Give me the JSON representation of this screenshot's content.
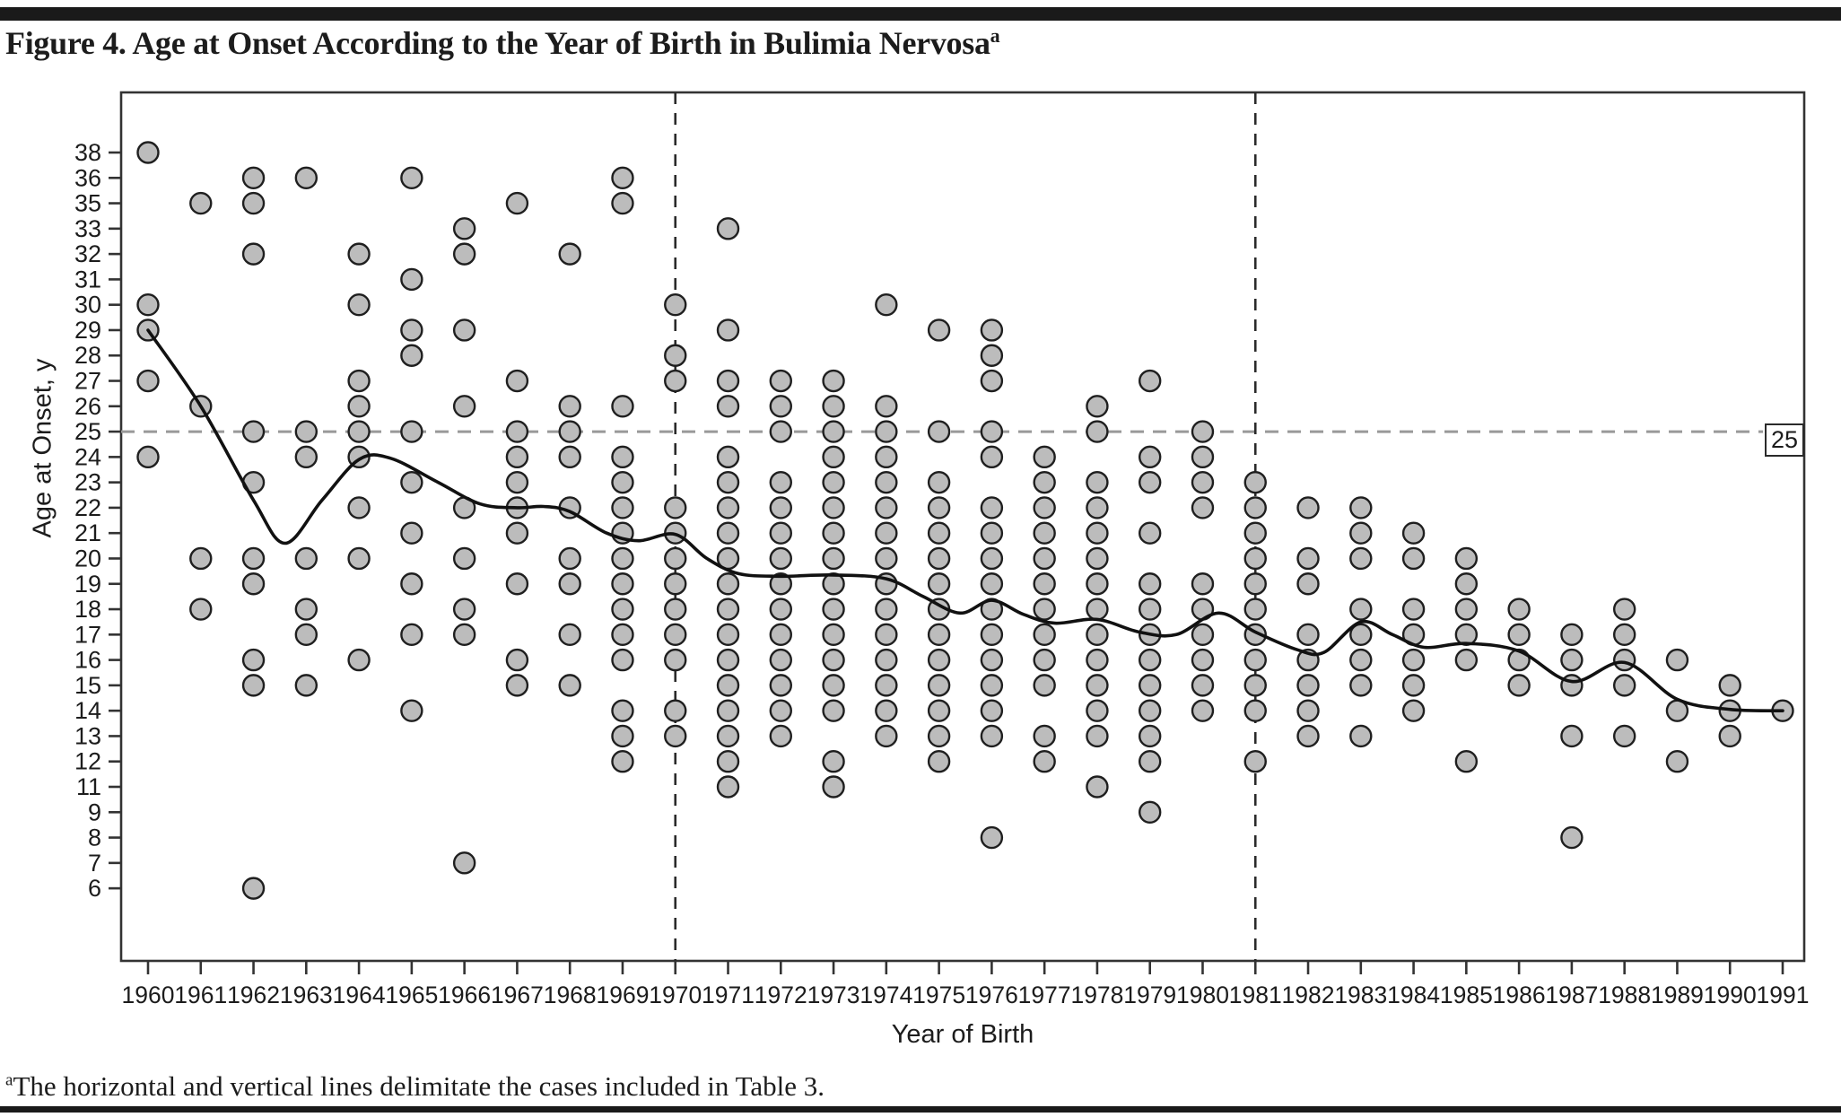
{
  "header": {
    "title": "Figure 4. Age at Onset According to the Year of Birth in Bulimia Nervosa",
    "title_superscript": "a"
  },
  "footnote": {
    "marker": "a",
    "text": "The horizontal and vertical lines delimitate the cases included in Table 3."
  },
  "colors": {
    "dot_fill": "#bcbcbc",
    "dot_stroke": "#1f1f1f",
    "trend_line": "#111111",
    "dashed_horizontal": "#999999",
    "dashed_vertical": "#2a2a2a",
    "axis": "#333333",
    "text": "#1c1c1c"
  },
  "chart_data": {
    "type": "scatter",
    "title": "Age at Onset According to the Year of Birth in Bulimia Nervosa",
    "xlabel": "Year of Birth",
    "ylabel": "Age at Onset, y",
    "x_ticks": [
      1960,
      1961,
      1962,
      1963,
      1964,
      1965,
      1966,
      1967,
      1968,
      1969,
      1970,
      1971,
      1972,
      1973,
      1974,
      1975,
      1976,
      1977,
      1978,
      1979,
      1980,
      1981,
      1982,
      1983,
      1984,
      1985,
      1986,
      1987,
      1988,
      1989,
      1990,
      1991
    ],
    "y_ticks": [
      38,
      36,
      35,
      33,
      32,
      31,
      30,
      29,
      28,
      27,
      26,
      25,
      24,
      23,
      22,
      21,
      20,
      19,
      18,
      17,
      16,
      15,
      14,
      13,
      12,
      11,
      9,
      8,
      7,
      6
    ],
    "grid": false,
    "reference_lines": {
      "horizontal_age": 25,
      "label": "25",
      "vertical_years": [
        1970,
        1981
      ]
    },
    "points": [
      {
        "year": 1960,
        "ages": [
          38,
          30,
          29,
          27,
          24
        ]
      },
      {
        "year": 1961,
        "ages": [
          35,
          26,
          20,
          18
        ]
      },
      {
        "year": 1962,
        "ages": [
          36,
          35,
          32,
          25,
          23,
          20,
          19,
          16,
          15,
          6
        ]
      },
      {
        "year": 1963,
        "ages": [
          36,
          25,
          24,
          20,
          18,
          17,
          15
        ]
      },
      {
        "year": 1964,
        "ages": [
          32,
          30,
          27,
          26,
          25,
          24,
          22,
          20,
          16
        ]
      },
      {
        "year": 1965,
        "ages": [
          36,
          31,
          29,
          28,
          25,
          23,
          21,
          19,
          17,
          14
        ]
      },
      {
        "year": 1966,
        "ages": [
          33,
          32,
          29,
          26,
          22,
          20,
          18,
          17,
          7
        ]
      },
      {
        "year": 1967,
        "ages": [
          35,
          27,
          25,
          24,
          23,
          22,
          21,
          19,
          16,
          15
        ]
      },
      {
        "year": 1968,
        "ages": [
          32,
          26,
          25,
          24,
          22,
          20,
          19,
          17,
          15
        ]
      },
      {
        "year": 1969,
        "ages": [
          36,
          35,
          26,
          24,
          23,
          22,
          21,
          20,
          19,
          18,
          17,
          16,
          14,
          13,
          12
        ]
      },
      {
        "year": 1970,
        "ages": [
          30,
          28,
          27,
          22,
          21,
          20,
          19,
          18,
          17,
          16,
          14,
          13
        ]
      },
      {
        "year": 1971,
        "ages": [
          33,
          29,
          27,
          26,
          24,
          23,
          22,
          21,
          20,
          19,
          18,
          17,
          16,
          15,
          14,
          13,
          12,
          11
        ]
      },
      {
        "year": 1972,
        "ages": [
          27,
          26,
          25,
          23,
          22,
          21,
          20,
          19,
          18,
          17,
          16,
          15,
          14,
          13
        ]
      },
      {
        "year": 1973,
        "ages": [
          27,
          26,
          25,
          24,
          23,
          22,
          21,
          20,
          19,
          18,
          17,
          16,
          15,
          14,
          12,
          11
        ]
      },
      {
        "year": 1974,
        "ages": [
          30,
          26,
          25,
          24,
          23,
          22,
          21,
          20,
          19,
          18,
          17,
          16,
          15,
          14,
          13
        ]
      },
      {
        "year": 1975,
        "ages": [
          29,
          25,
          23,
          22,
          21,
          20,
          19,
          18,
          17,
          16,
          15,
          14,
          13,
          12
        ]
      },
      {
        "year": 1976,
        "ages": [
          29,
          28,
          27,
          25,
          24,
          22,
          21,
          20,
          19,
          18,
          17,
          16,
          15,
          14,
          13,
          8
        ]
      },
      {
        "year": 1977,
        "ages": [
          24,
          23,
          22,
          21,
          20,
          19,
          18,
          17,
          16,
          15,
          13,
          12
        ]
      },
      {
        "year": 1978,
        "ages": [
          26,
          25,
          23,
          22,
          21,
          20,
          19,
          18,
          17,
          16,
          15,
          14,
          13,
          11
        ]
      },
      {
        "year": 1979,
        "ages": [
          27,
          24,
          23,
          21,
          19,
          18,
          17,
          16,
          15,
          14,
          13,
          12,
          9
        ]
      },
      {
        "year": 1980,
        "ages": [
          25,
          24,
          23,
          22,
          19,
          18,
          17,
          16,
          15,
          14
        ]
      },
      {
        "year": 1981,
        "ages": [
          23,
          22,
          21,
          20,
          19,
          18,
          17,
          16,
          15,
          14,
          12
        ]
      },
      {
        "year": 1982,
        "ages": [
          22,
          20,
          19,
          17,
          16,
          15,
          14,
          13
        ]
      },
      {
        "year": 1983,
        "ages": [
          22,
          21,
          20,
          18,
          17,
          16,
          15,
          13
        ]
      },
      {
        "year": 1984,
        "ages": [
          21,
          20,
          18,
          17,
          16,
          15,
          14
        ]
      },
      {
        "year": 1985,
        "ages": [
          20,
          19,
          18,
          17,
          16,
          12
        ]
      },
      {
        "year": 1986,
        "ages": [
          18,
          17,
          16,
          15
        ]
      },
      {
        "year": 1987,
        "ages": [
          17,
          16,
          15,
          13,
          8
        ]
      },
      {
        "year": 1988,
        "ages": [
          18,
          17,
          16,
          15,
          13
        ]
      },
      {
        "year": 1989,
        "ages": [
          16,
          14,
          12
        ]
      },
      {
        "year": 1990,
        "ages": [
          15,
          14,
          13
        ]
      },
      {
        "year": 1991,
        "ages": [
          14
        ]
      }
    ],
    "trend": [
      [
        1960,
        29.0
      ],
      [
        1961,
        26.0
      ],
      [
        1962,
        22.3
      ],
      [
        1962.6,
        20.6
      ],
      [
        1963.3,
        22.3
      ],
      [
        1964,
        23.9
      ],
      [
        1964.6,
        23.95
      ],
      [
        1965.5,
        23.0
      ],
      [
        1966.3,
        22.15
      ],
      [
        1967,
        22.0
      ],
      [
        1967.5,
        22.05
      ],
      [
        1968,
        21.85
      ],
      [
        1968.7,
        21.0
      ],
      [
        1969.3,
        20.7
      ],
      [
        1970,
        20.95
      ],
      [
        1970.6,
        20.0
      ],
      [
        1971.2,
        19.4
      ],
      [
        1972,
        19.3
      ],
      [
        1973,
        19.35
      ],
      [
        1974,
        19.2
      ],
      [
        1974.7,
        18.5
      ],
      [
        1975.4,
        17.85
      ],
      [
        1976,
        18.35
      ],
      [
        1976.6,
        17.8
      ],
      [
        1977.2,
        17.45
      ],
      [
        1978,
        17.6
      ],
      [
        1978.8,
        17.1
      ],
      [
        1979.5,
        17.0
      ],
      [
        1980.3,
        17.85
      ],
      [
        1981,
        17.1
      ],
      [
        1981.8,
        16.4
      ],
      [
        1982.3,
        16.3
      ],
      [
        1983,
        17.5
      ],
      [
        1983.6,
        17.0
      ],
      [
        1984.2,
        16.5
      ],
      [
        1985,
        16.65
      ],
      [
        1986,
        16.35
      ],
      [
        1987,
        15.15
      ],
      [
        1988,
        15.9
      ],
      [
        1989,
        14.45
      ],
      [
        1990,
        14.05
      ],
      [
        1991,
        14.0
      ]
    ]
  }
}
